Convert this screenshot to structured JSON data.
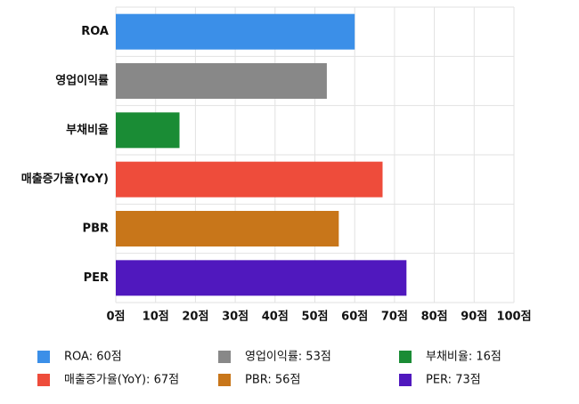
{
  "chart_data": {
    "type": "hbar",
    "categories": [
      "ROA",
      "영업이익률",
      "부채비율",
      "매출증가율(YoY)",
      "PBR",
      "PER"
    ],
    "values": [
      60,
      53,
      16,
      67,
      56,
      73
    ],
    "colors": [
      "#3b8fe8",
      "#888888",
      "#1a8c35",
      "#ee4c3b",
      "#c8761a",
      "#5018be"
    ],
    "legend_labels": [
      "ROA: 60점",
      "영업이익률: 53점",
      "부채비율: 16점",
      "매출증가율(YoY): 67점",
      "PBR: 56점",
      "PER: 73점"
    ],
    "xlim": [
      0,
      100
    ],
    "xticks": [
      {
        "value": 0,
        "label": "0점"
      },
      {
        "value": 10,
        "label": "10점"
      },
      {
        "value": 20,
        "label": "20점"
      },
      {
        "value": 30,
        "label": "30점"
      },
      {
        "value": 40,
        "label": "40점"
      },
      {
        "value": 50,
        "label": "50점"
      },
      {
        "value": 60,
        "label": "60점"
      },
      {
        "value": 70,
        "label": "70점"
      },
      {
        "value": 80,
        "label": "80점"
      },
      {
        "value": 90,
        "label": "90점"
      },
      {
        "value": 100,
        "label": "100점"
      }
    ],
    "grid": true
  }
}
